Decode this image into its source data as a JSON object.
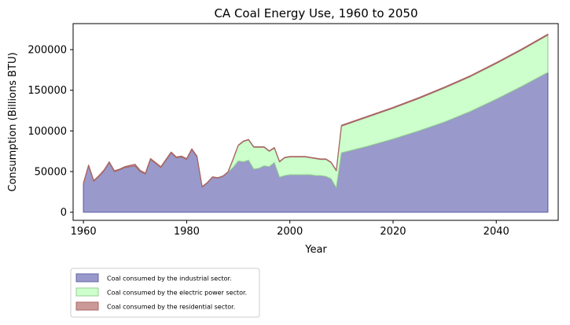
{
  "chart_data": {
    "type": "area",
    "stacked": true,
    "title": "CA Coal Energy Use, 1960 to 2050",
    "xlabel": "Year",
    "ylabel": "Consumption (Billions BTU)",
    "xlim": [
      1958,
      2052
    ],
    "ylim": [
      -10000,
      232000
    ],
    "xticks": [
      1960,
      1980,
      2000,
      2020,
      2040
    ],
    "yticks": [
      0,
      50000,
      100000,
      150000,
      200000
    ],
    "grid": false,
    "legend_position": "below-left",
    "x": [
      1960,
      1961,
      1962,
      1963,
      1964,
      1965,
      1966,
      1967,
      1968,
      1969,
      1970,
      1971,
      1972,
      1973,
      1974,
      1975,
      1976,
      1977,
      1978,
      1979,
      1980,
      1981,
      1982,
      1983,
      1984,
      1985,
      1986,
      1987,
      1988,
      1989,
      1990,
      1991,
      1992,
      1993,
      1994,
      1995,
      1996,
      1997,
      1998,
      1999,
      2000,
      2001,
      2002,
      2003,
      2004,
      2005,
      2006,
      2007,
      2008,
      2009,
      2010,
      2015,
      2020,
      2025,
      2030,
      2035,
      2040,
      2045,
      2050
    ],
    "series": [
      {
        "name": "Coal consumed by the industrial sector.",
        "color": "#9999cc",
        "edge": "#6666aa",
        "values": [
          35000,
          57000,
          38000,
          44000,
          51000,
          61000,
          50000,
          52000,
          55000,
          56000,
          57000,
          50000,
          47000,
          65000,
          60000,
          55000,
          64000,
          73000,
          67000,
          68000,
          65000,
          77000,
          68000,
          31000,
          36000,
          43000,
          42000,
          44000,
          49000,
          55000,
          63000,
          62000,
          64000,
          53000,
          54000,
          57000,
          56000,
          61000,
          43000,
          45000,
          46000,
          46000,
          46000,
          46000,
          46000,
          45000,
          45000,
          44000,
          41000,
          30000,
          73000,
          81000,
          90000,
          100000,
          111000,
          124000,
          139000,
          155000,
          172000
        ]
      },
      {
        "name": "Coal consumed by the electric power sector.",
        "color": "#ccffcc",
        "edge": "#99cc99",
        "values": [
          0,
          0,
          0,
          0,
          0,
          0,
          0,
          0,
          0,
          0,
          0,
          0,
          0,
          0,
          0,
          0,
          0,
          0,
          0,
          0,
          0,
          0,
          0,
          0,
          0,
          0,
          0,
          0,
          0,
          10000,
          19000,
          25000,
          25000,
          27000,
          26000,
          23000,
          19000,
          18000,
          19000,
          22000,
          22000,
          22000,
          22000,
          22000,
          21000,
          21000,
          20000,
          21000,
          20000,
          21000,
          33000,
          36000,
          38000,
          40000,
          42000,
          43000,
          44000,
          45000,
          46000
        ]
      },
      {
        "name": "Coal consumed by the residential sector.",
        "color": "#cc9999",
        "edge": "#aa6666",
        "values": [
          1000,
          1000,
          1000,
          1000,
          1000,
          1000,
          1000,
          1000,
          1000,
          1500,
          2000,
          1500,
          1000,
          1000,
          1000,
          1000,
          1000,
          1000,
          1000,
          1000,
          1000,
          1000,
          1000,
          500,
          500,
          500,
          500,
          500,
          500,
          500,
          500,
          500,
          500,
          500,
          500,
          500,
          500,
          500,
          500,
          500,
          500,
          500,
          500,
          500,
          500,
          500,
          500,
          500,
          500,
          500,
          1000,
          1000,
          1000,
          1000,
          1000,
          1000,
          1000,
          1000,
          1000
        ]
      }
    ]
  }
}
